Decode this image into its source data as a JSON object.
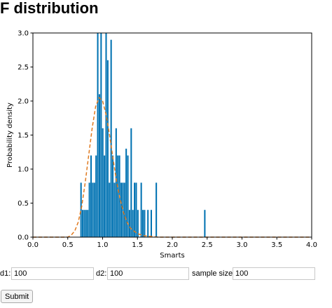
{
  "page": {
    "title": "F distribution"
  },
  "chart_data": {
    "type": "bar",
    "xlabel": "Smarts",
    "ylabel": "Probability density",
    "xlim": [
      0.0,
      4.0
    ],
    "ylim": [
      0.0,
      3.0
    ],
    "x_ticks": [
      "0.0",
      "0.5",
      "1.0",
      "1.5",
      "2.0",
      "2.5",
      "3.0",
      "3.5",
      "4.0"
    ],
    "y_ticks": [
      "0.0",
      "0.5",
      "1.0",
      "1.5",
      "2.0",
      "2.5",
      "3.0"
    ],
    "bar_color": "#0072b2",
    "curve_color": "#e07a20",
    "histogram": {
      "bin_start": 0.68,
      "bin_width": 0.024,
      "values": [
        0.8,
        0.4,
        0.4,
        0.4,
        0.4,
        0.8,
        1.2,
        0.8,
        0.8,
        1.2,
        3.0,
        2.1,
        3.0,
        1.6,
        1.2,
        3.0,
        2.6,
        0.8,
        2.9,
        1.2,
        0.8,
        1.6,
        1.2,
        1.2,
        0.8,
        0.8,
        0.8,
        1.3,
        1.2,
        0.4,
        1.6,
        0.4,
        0.8,
        0.8,
        0.4,
        0.0,
        0.8,
        0.4,
        0.4,
        0.0,
        0.4,
        0.0,
        0.4,
        0.0,
        0.0,
        0.8,
        0.0,
        0.0,
        0.0,
        0.0,
        0.0,
        0.0,
        0.0,
        0.0,
        0.0,
        0.0,
        0.0,
        0.0,
        0.0,
        0.0,
        0.0,
        0.0,
        0.0,
        0.0,
        0.0,
        0.0,
        0.0,
        0.0,
        0.0,
        0.0,
        0.0,
        0.0,
        0.0,
        0.0,
        0.4
      ]
    },
    "pdf_curve": {
      "x": [
        0.0,
        0.5,
        0.55,
        0.6,
        0.65,
        0.7,
        0.75,
        0.8,
        0.85,
        0.9,
        0.95,
        1.0,
        1.05,
        1.1,
        1.15,
        1.2,
        1.25,
        1.3,
        1.35,
        1.4,
        1.5,
        1.6,
        1.7,
        1.8,
        1.9,
        2.0,
        2.5,
        3.0,
        3.5,
        4.0
      ],
      "y": [
        0.0,
        0.0,
        0.03,
        0.09,
        0.22,
        0.45,
        0.8,
        1.2,
        1.6,
        1.92,
        2.05,
        2.0,
        1.8,
        1.5,
        1.15,
        0.82,
        0.56,
        0.36,
        0.22,
        0.13,
        0.05,
        0.02,
        0.01,
        0.0,
        0.0,
        0.0,
        0.0,
        0.0,
        0.0,
        0.0
      ]
    }
  },
  "form": {
    "d1_label": "d1:",
    "d1_value": "100",
    "d2_label": "d2:",
    "d2_value": "100",
    "sample_label": "sample size:",
    "sample_value": "100",
    "submit_label": "Submit"
  }
}
